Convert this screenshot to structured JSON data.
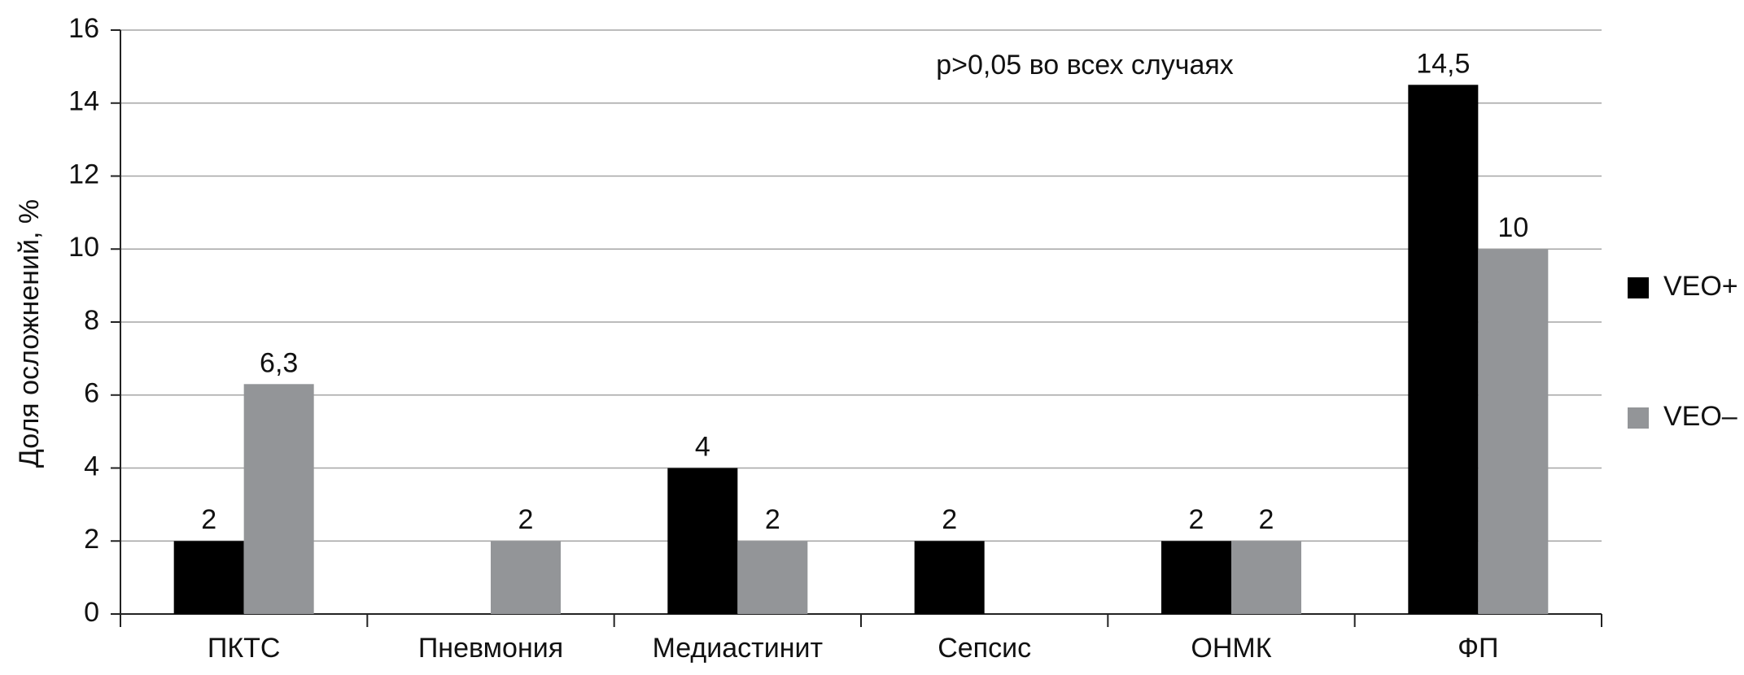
{
  "chart_data": {
    "type": "bar",
    "ylabel": "Доля осложнений, %",
    "annotation": "p>0,05 во всех случаях",
    "categories": [
      "ПКТС",
      "Пневмония",
      "Медиастинит",
      "Сепсис",
      "ОНМК",
      "ФП"
    ],
    "series": [
      {
        "name": "VEO+",
        "color": "#000000",
        "values": [
          2,
          null,
          4,
          2,
          2,
          14.5
        ],
        "value_labels": [
          "2",
          null,
          "4",
          "2",
          "2",
          "14,5"
        ]
      },
      {
        "name": "VEO–",
        "color": "#939598",
        "values": [
          6.3,
          2,
          2,
          null,
          2,
          10
        ],
        "value_labels": [
          "6,3",
          "2",
          "2",
          null,
          "2",
          "10"
        ]
      }
    ],
    "ylim": [
      0,
      16
    ],
    "yticks": [
      0,
      2,
      4,
      6,
      8,
      10,
      12,
      14,
      16
    ],
    "grid": true,
    "legend": "right"
  }
}
